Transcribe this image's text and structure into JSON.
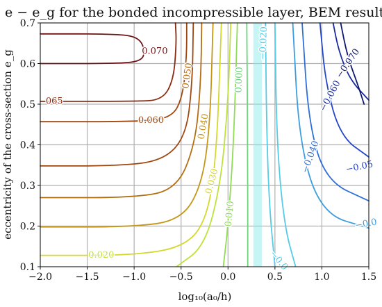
{
  "chart_data": {
    "type": "contour",
    "title": "e − e_g for the bonded incompressible layer, BEM results",
    "xlabel": "log₁₀(a₀/h)",
    "ylabel": "eccentricity of the cross-section e_g",
    "xlim": [
      -2.0,
      1.5
    ],
    "ylim": [
      0.1,
      0.7
    ],
    "xticks": [
      "−2.0",
      "−1.5",
      "−1.0",
      "−0.5",
      "0.0",
      "0.5",
      "1.0",
      "1.5"
    ],
    "yticks": [
      "0.1",
      "0.2",
      "0.3",
      "0.4",
      "0.5",
      "0.6",
      "0.7"
    ],
    "grid": true,
    "colors": {
      "dark_red": "#6e1414",
      "red_brown": "#8a2a10",
      "brown": "#a0470f",
      "orange_brown": "#b56d12",
      "ochre": "#c4961a",
      "yellow": "#d4d82c",
      "yellow_green": "#bde23a",
      "light_green": "#8fdc55",
      "green": "#6cd57a",
      "cyan_band": "#7fe8e8",
      "light_cyan": "#55cbe6",
      "blue_cyan": "#3c9ee0",
      "mid_blue": "#2f6fd8",
      "blue": "#2346c8",
      "dark_blue": "#1a2a9c",
      "navy": "#0f1870"
    },
    "contours": [
      {
        "level": 0.07,
        "label": "0.070",
        "color": "dark_red",
        "points": [
          [
            -2.0,
            0.673
          ],
          [
            -1.2,
            0.673
          ],
          [
            -0.95,
            0.665
          ],
          [
            -0.88,
            0.63
          ],
          [
            -0.93,
            0.605
          ],
          [
            -1.2,
            0.6
          ],
          [
            -2.0,
            0.6
          ]
        ]
      },
      {
        "level": 0.065,
        "label": "065",
        "color": "red_brown",
        "points": [
          [
            -2.0,
            0.507
          ],
          [
            -1.0,
            0.507
          ],
          [
            -0.7,
            0.51
          ],
          [
            -0.58,
            0.56
          ],
          [
            -0.55,
            0.65
          ],
          [
            -0.56,
            0.7
          ]
        ]
      },
      {
        "level": 0.06,
        "label": "0.060",
        "color": "brown",
        "points": [
          [
            -2.0,
            0.457
          ],
          [
            -1.0,
            0.457
          ],
          [
            -0.6,
            0.465
          ],
          [
            -0.48,
            0.52
          ],
          [
            -0.44,
            0.62
          ],
          [
            -0.44,
            0.7
          ]
        ]
      },
      {
        "level": 0.055,
        "color": "brown",
        "points": [
          [
            -2.0,
            0.348
          ],
          [
            -1.2,
            0.348
          ],
          [
            -0.7,
            0.36
          ],
          [
            -0.45,
            0.42
          ],
          [
            -0.38,
            0.55
          ],
          [
            -0.37,
            0.7
          ]
        ]
      },
      {
        "level": 0.05,
        "label": "0.050",
        "color": "orange_brown",
        "points": [
          [
            -2.0,
            0.27
          ],
          [
            -1.0,
            0.27
          ],
          [
            -0.55,
            0.29
          ],
          [
            -0.35,
            0.4
          ],
          [
            -0.29,
            0.55
          ],
          [
            -0.28,
            0.7
          ]
        ]
      },
      {
        "level": 0.04,
        "label": "0.040",
        "color": "ochre",
        "points": [
          [
            -2.0,
            0.198
          ],
          [
            -1.0,
            0.198
          ],
          [
            -0.5,
            0.215
          ],
          [
            -0.28,
            0.3
          ],
          [
            -0.19,
            0.45
          ],
          [
            -0.16,
            0.7
          ]
        ]
      },
      {
        "level": 0.03,
        "label": "0.030",
        "color": "yellow",
        "points": [
          [
            -2.0,
            0.128
          ],
          [
            -1.0,
            0.128
          ],
          [
            -0.45,
            0.15
          ],
          [
            -0.22,
            0.22
          ],
          [
            -0.12,
            0.38
          ],
          [
            -0.07,
            0.7
          ]
        ]
      },
      {
        "level": 0.02,
        "label": "0.020",
        "color": "yellow_green",
        "points": [
          [
            -0.55,
            0.1
          ],
          [
            -0.25,
            0.15
          ],
          [
            -0.08,
            0.3
          ],
          [
            0.0,
            0.5
          ],
          [
            0.03,
            0.7
          ]
        ]
      },
      {
        "level": 0.01,
        "label": "0.010",
        "color": "light_green",
        "points": [
          [
            -0.05,
            0.1
          ],
          [
            0.0,
            0.2
          ],
          [
            0.06,
            0.4
          ],
          [
            0.1,
            0.7
          ]
        ]
      },
      {
        "level": 0.0,
        "label": "0.000",
        "color": "green",
        "points": [
          [
            0.21,
            0.1
          ],
          [
            0.21,
            0.4
          ],
          [
            0.2,
            0.7
          ]
        ]
      },
      {
        "level": -0.01,
        "color": "light_cyan",
        "points": [
          [
            0.5,
            0.1
          ],
          [
            0.44,
            0.25
          ],
          [
            0.41,
            0.45
          ],
          [
            0.4,
            0.7
          ]
        ]
      },
      {
        "level": -0.02,
        "label": "−0.020",
        "color": "light_cyan",
        "points": [
          [
            0.72,
            0.1
          ],
          [
            0.6,
            0.2
          ],
          [
            0.52,
            0.4
          ],
          [
            0.5,
            0.7
          ]
        ]
      },
      {
        "level": -0.03,
        "label": "−0.0",
        "color": "blue_cyan",
        "points": [
          [
            1.5,
            0.195
          ],
          [
            1.0,
            0.23
          ],
          [
            0.76,
            0.4
          ],
          [
            0.69,
            0.7
          ]
        ]
      },
      {
        "level": -0.04,
        "label": "−0.040",
        "color": "mid_blue",
        "points": [
          [
            1.5,
            0.262
          ],
          [
            1.05,
            0.31
          ],
          [
            0.86,
            0.45
          ],
          [
            0.79,
            0.7
          ]
        ]
      },
      {
        "level": -0.05,
        "label": "−0.05",
        "color": "blue",
        "points": [
          [
            1.5,
            0.37
          ],
          [
            1.2,
            0.42
          ],
          [
            1.04,
            0.55
          ],
          [
            0.98,
            0.7
          ]
        ]
      },
      {
        "level": -0.06,
        "label": "−0.060",
        "color": "dark_blue",
        "points": [
          [
            1.5,
            0.51
          ],
          [
            1.3,
            0.56
          ],
          [
            1.18,
            0.63
          ],
          [
            1.12,
            0.7
          ]
        ]
      },
      {
        "level": -0.07,
        "label": "−0.070",
        "color": "navy",
        "points": [
          [
            1.45,
            0.5
          ],
          [
            1.38,
            0.55
          ],
          [
            1.27,
            0.62
          ],
          [
            1.2,
            0.7
          ]
        ]
      }
    ],
    "contour_labels": [
      {
        "text": "0.070",
        "x": -0.78,
        "y": 0.63,
        "color": "dark_red",
        "angle": 0
      },
      {
        "text": "065",
        "x": -1.85,
        "y": 0.507,
        "color": "red_brown",
        "angle": 0
      },
      {
        "text": "0.060",
        "x": -0.82,
        "y": 0.46,
        "color": "brown",
        "angle": 0
      },
      {
        "text": "0.050",
        "x": -0.43,
        "y": 0.57,
        "color": "orange_brown",
        "angle": -82
      },
      {
        "text": "0.040",
        "x": -0.26,
        "y": 0.445,
        "color": "ochre",
        "angle": -80
      },
      {
        "text": "0.030",
        "x": -0.17,
        "y": 0.31,
        "color": "yellow",
        "angle": -75
      },
      {
        "text": "0.020",
        "x": -1.35,
        "y": 0.128,
        "color": "yellow_green",
        "angle": 0
      },
      {
        "text": "0.010",
        "x": 0.02,
        "y": 0.23,
        "color": "light_green",
        "angle": -84
      },
      {
        "text": "0.000",
        "x": 0.12,
        "y": 0.56,
        "color": "green",
        "angle": -88
      },
      {
        "text": "−0.020",
        "x": 0.38,
        "y": 0.65,
        "color": "light_cyan",
        "angle": -88
      },
      {
        "text": "−0.0",
        "x": 0.54,
        "y": 0.115,
        "color": "light_cyan",
        "angle": 50
      },
      {
        "text": "−0.040",
        "x": 0.88,
        "y": 0.37,
        "color": "mid_blue",
        "angle": -70
      },
      {
        "text": "−0.060",
        "x": 1.09,
        "y": 0.52,
        "color": "dark_blue",
        "angle": -62
      },
      {
        "text": "−0.070",
        "x": 1.28,
        "y": 0.6,
        "color": "navy",
        "angle": -55
      },
      {
        "text": "−0.05",
        "x": 1.4,
        "y": 0.345,
        "color": "blue",
        "angle": -12
      },
      {
        "text": "−0.0",
        "x": 1.47,
        "y": 0.205,
        "color": "blue_cyan",
        "angle": -10
      }
    ]
  }
}
